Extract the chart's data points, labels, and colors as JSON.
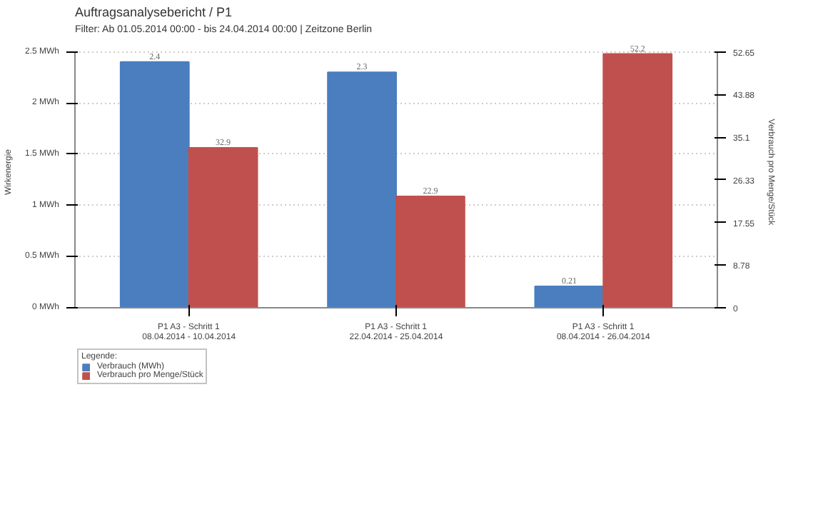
{
  "chart_data": {
    "type": "bar",
    "title": "Auftragsanalysebericht / P1",
    "subtitle": "Filter: Ab 01.05.2014 00:00 - bis 24.04.2014 00:00 | Zeitzone Berlin",
    "ylabel": "Wirkenergie",
    "y2label": "Verbrauch pro Menge/Stück",
    "legend_title": "Legende:",
    "categories": [
      "P1 A3 - Schritt 1\n08.04.2014 - 10.04.2014",
      "P1 A3 - Schritt 1\n22.04.2014 - 25.04.2014",
      "P1 A3 - Schritt 1\n08.04.2014 - 26.04.2014"
    ],
    "series": [
      {
        "name": "Verbrauch (MWh)",
        "color": "#4a7ebf",
        "values": [
          2.4,
          2.3,
          0.21
        ]
      },
      {
        "name": "Verbrauch pro Menge/Stück",
        "color": "#c0504d",
        "values": [
          32.9,
          22.9,
          52.2
        ],
        "axis": "y2"
      }
    ],
    "ylim": [
      0,
      2.5
    ],
    "yticks": [
      {
        "value": 0,
        "label": "0 MWh"
      },
      {
        "value": 0.5,
        "label": "0.5 MWh"
      },
      {
        "value": 1,
        "label": "1 MWh"
      },
      {
        "value": 1.5,
        "label": "1.5 MWh"
      },
      {
        "value": 2,
        "label": "2 MWh"
      },
      {
        "value": 2.5,
        "label": "2.5 MWh"
      }
    ],
    "y2lim": [
      0,
      52.65
    ],
    "y2ticks": [
      0,
      8.78,
      17.55,
      26.33,
      35.1,
      43.88,
      52.65
    ],
    "grid": "y",
    "legend": "bottom",
    "data_labels": true
  }
}
